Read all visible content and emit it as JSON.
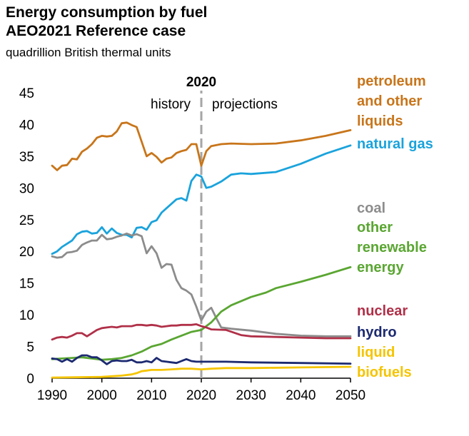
{
  "chart_data": {
    "type": "line",
    "title": "Energy consumption by fuel",
    "subtitle": "AEO2021 Reference case",
    "ylabel": "quadrillion British thermal units",
    "xlabel": "",
    "xlim": [
      1990,
      2050
    ],
    "ylim": [
      0,
      45
    ],
    "x_ticks": [
      1990,
      2000,
      2010,
      2020,
      2030,
      2040,
      2050
    ],
    "y_ticks": [
      0,
      5,
      10,
      15,
      20,
      25,
      30,
      35,
      40,
      45
    ],
    "divider": {
      "year": 2020,
      "label": "2020",
      "left_label": "history",
      "right_label": "projections"
    },
    "series": [
      {
        "name": "petroleum and other liquids",
        "label_lines": [
          "petroleum",
          "and other",
          "liquids"
        ],
        "color": "#c8751a",
        "points": [
          [
            1990,
            33.5
          ],
          [
            1991,
            32.8
          ],
          [
            1992,
            33.5
          ],
          [
            1993,
            33.6
          ],
          [
            1994,
            34.6
          ],
          [
            1995,
            34.5
          ],
          [
            1996,
            35.7
          ],
          [
            1997,
            36.2
          ],
          [
            1998,
            36.9
          ],
          [
            1999,
            37.9
          ],
          [
            2000,
            38.2
          ],
          [
            2001,
            38.1
          ],
          [
            2002,
            38.2
          ],
          [
            2003,
            38.9
          ],
          [
            2004,
            40.2
          ],
          [
            2005,
            40.3
          ],
          [
            2006,
            39.9
          ],
          [
            2007,
            39.6
          ],
          [
            2008,
            37.3
          ],
          [
            2009,
            35.0
          ],
          [
            2010,
            35.5
          ],
          [
            2011,
            34.9
          ],
          [
            2012,
            34.0
          ],
          [
            2013,
            34.6
          ],
          [
            2014,
            34.8
          ],
          [
            2015,
            35.5
          ],
          [
            2016,
            35.8
          ],
          [
            2017,
            36.0
          ],
          [
            2018,
            36.9
          ],
          [
            2019,
            36.9
          ],
          [
            2020,
            33.5
          ],
          [
            2021,
            35.8
          ],
          [
            2022,
            36.6
          ],
          [
            2024,
            36.9
          ],
          [
            2026,
            37.0
          ],
          [
            2030,
            36.9
          ],
          [
            2035,
            37.0
          ],
          [
            2040,
            37.5
          ],
          [
            2045,
            38.2
          ],
          [
            2050,
            39.1
          ]
        ]
      },
      {
        "name": "natural gas",
        "label_lines": [
          "natural gas"
        ],
        "color": "#1aa3dc",
        "points": [
          [
            1990,
            19.6
          ],
          [
            1991,
            20.0
          ],
          [
            1992,
            20.7
          ],
          [
            1993,
            21.2
          ],
          [
            1994,
            21.7
          ],
          [
            1995,
            22.7
          ],
          [
            1996,
            23.1
          ],
          [
            1997,
            23.2
          ],
          [
            1998,
            22.8
          ],
          [
            1999,
            22.9
          ],
          [
            2000,
            23.8
          ],
          [
            2001,
            22.8
          ],
          [
            2002,
            23.6
          ],
          [
            2003,
            22.9
          ],
          [
            2004,
            22.6
          ],
          [
            2005,
            22.6
          ],
          [
            2006,
            22.2
          ],
          [
            2007,
            23.7
          ],
          [
            2008,
            23.8
          ],
          [
            2009,
            23.4
          ],
          [
            2010,
            24.6
          ],
          [
            2011,
            24.9
          ],
          [
            2012,
            26.1
          ],
          [
            2013,
            26.8
          ],
          [
            2014,
            27.5
          ],
          [
            2015,
            28.2
          ],
          [
            2016,
            28.4
          ],
          [
            2017,
            28.0
          ],
          [
            2018,
            31.1
          ],
          [
            2019,
            32.1
          ],
          [
            2020,
            31.8
          ],
          [
            2021,
            30.0
          ],
          [
            2022,
            30.2
          ],
          [
            2024,
            31.0
          ],
          [
            2026,
            32.1
          ],
          [
            2028,
            32.3
          ],
          [
            2030,
            32.2
          ],
          [
            2035,
            32.5
          ],
          [
            2040,
            33.8
          ],
          [
            2045,
            35.4
          ],
          [
            2050,
            36.7
          ]
        ]
      },
      {
        "name": "coal",
        "label_lines": [
          "coal"
        ],
        "color": "#8c8c8c",
        "points": [
          [
            1990,
            19.2
          ],
          [
            1991,
            19.0
          ],
          [
            1992,
            19.1
          ],
          [
            1993,
            19.8
          ],
          [
            1994,
            19.9
          ],
          [
            1995,
            20.1
          ],
          [
            1996,
            21.0
          ],
          [
            1997,
            21.4
          ],
          [
            1998,
            21.7
          ],
          [
            1999,
            21.7
          ],
          [
            2000,
            22.6
          ],
          [
            2001,
            21.9
          ],
          [
            2002,
            22.0
          ],
          [
            2003,
            22.3
          ],
          [
            2004,
            22.5
          ],
          [
            2005,
            22.8
          ],
          [
            2006,
            22.5
          ],
          [
            2007,
            22.7
          ],
          [
            2008,
            22.4
          ],
          [
            2009,
            19.7
          ],
          [
            2010,
            20.8
          ],
          [
            2011,
            19.7
          ],
          [
            2012,
            17.4
          ],
          [
            2013,
            18.0
          ],
          [
            2014,
            17.9
          ],
          [
            2015,
            15.5
          ],
          [
            2016,
            14.2
          ],
          [
            2017,
            13.8
          ],
          [
            2018,
            13.2
          ],
          [
            2019,
            11.3
          ],
          [
            2020,
            9.1
          ],
          [
            2021,
            10.5
          ],
          [
            2022,
            11.1
          ],
          [
            2023,
            9.5
          ],
          [
            2024,
            8.0
          ],
          [
            2026,
            7.8
          ],
          [
            2030,
            7.5
          ],
          [
            2035,
            7.0
          ],
          [
            2040,
            6.7
          ],
          [
            2045,
            6.6
          ],
          [
            2050,
            6.6
          ]
        ]
      },
      {
        "name": "other renewable energy",
        "label_lines": [
          "other",
          "renewable",
          "energy"
        ],
        "color": "#5aa632",
        "points": [
          [
            1990,
            3.0
          ],
          [
            1992,
            3.1
          ],
          [
            1994,
            3.2
          ],
          [
            1996,
            3.3
          ],
          [
            1998,
            3.1
          ],
          [
            2000,
            2.9
          ],
          [
            2002,
            3.0
          ],
          [
            2004,
            3.2
          ],
          [
            2006,
            3.6
          ],
          [
            2008,
            4.2
          ],
          [
            2010,
            5.0
          ],
          [
            2012,
            5.4
          ],
          [
            2014,
            6.1
          ],
          [
            2016,
            6.7
          ],
          [
            2018,
            7.3
          ],
          [
            2020,
            7.6
          ],
          [
            2022,
            8.8
          ],
          [
            2024,
            10.5
          ],
          [
            2026,
            11.5
          ],
          [
            2030,
            12.8
          ],
          [
            2033,
            13.5
          ],
          [
            2035,
            14.2
          ],
          [
            2040,
            15.2
          ],
          [
            2045,
            16.3
          ],
          [
            2050,
            17.5
          ]
        ]
      },
      {
        "name": "nuclear",
        "label_lines": [
          "nuclear"
        ],
        "color": "#b03048",
        "points": [
          [
            1990,
            6.1
          ],
          [
            1991,
            6.4
          ],
          [
            1992,
            6.5
          ],
          [
            1993,
            6.4
          ],
          [
            1994,
            6.7
          ],
          [
            1995,
            7.1
          ],
          [
            1996,
            7.1
          ],
          [
            1997,
            6.6
          ],
          [
            1998,
            7.1
          ],
          [
            1999,
            7.6
          ],
          [
            2000,
            7.9
          ],
          [
            2001,
            8.0
          ],
          [
            2002,
            8.1
          ],
          [
            2003,
            8.0
          ],
          [
            2004,
            8.2
          ],
          [
            2005,
            8.2
          ],
          [
            2006,
            8.2
          ],
          [
            2007,
            8.4
          ],
          [
            2008,
            8.4
          ],
          [
            2009,
            8.3
          ],
          [
            2010,
            8.4
          ],
          [
            2011,
            8.3
          ],
          [
            2012,
            8.1
          ],
          [
            2013,
            8.2
          ],
          [
            2014,
            8.3
          ],
          [
            2015,
            8.3
          ],
          [
            2016,
            8.4
          ],
          [
            2017,
            8.4
          ],
          [
            2018,
            8.4
          ],
          [
            2019,
            8.5
          ],
          [
            2020,
            8.2
          ],
          [
            2021,
            8.0
          ],
          [
            2022,
            7.7
          ],
          [
            2025,
            7.6
          ],
          [
            2028,
            6.8
          ],
          [
            2030,
            6.6
          ],
          [
            2035,
            6.5
          ],
          [
            2040,
            6.4
          ],
          [
            2045,
            6.3
          ],
          [
            2050,
            6.3
          ]
        ]
      },
      {
        "name": "hydro",
        "label_lines": [
          "hydro"
        ],
        "color": "#1c2a70",
        "points": [
          [
            1990,
            3.1
          ],
          [
            1991,
            3.0
          ],
          [
            1992,
            2.6
          ],
          [
            1993,
            3.0
          ],
          [
            1994,
            2.6
          ],
          [
            1995,
            3.2
          ],
          [
            1996,
            3.6
          ],
          [
            1997,
            3.6
          ],
          [
            1998,
            3.3
          ],
          [
            1999,
            3.3
          ],
          [
            2000,
            2.8
          ],
          [
            2001,
            2.2
          ],
          [
            2002,
            2.7
          ],
          [
            2003,
            2.8
          ],
          [
            2004,
            2.7
          ],
          [
            2005,
            2.7
          ],
          [
            2006,
            2.9
          ],
          [
            2007,
            2.5
          ],
          [
            2008,
            2.5
          ],
          [
            2009,
            2.7
          ],
          [
            2010,
            2.5
          ],
          [
            2011,
            3.2
          ],
          [
            2012,
            2.7
          ],
          [
            2013,
            2.6
          ],
          [
            2014,
            2.5
          ],
          [
            2015,
            2.4
          ],
          [
            2016,
            2.7
          ],
          [
            2017,
            3.0
          ],
          [
            2018,
            2.7
          ],
          [
            2019,
            2.6
          ],
          [
            2020,
            2.6
          ],
          [
            2025,
            2.6
          ],
          [
            2030,
            2.5
          ],
          [
            2040,
            2.4
          ],
          [
            2050,
            2.3
          ]
        ]
      },
      {
        "name": "liquid biofuels",
        "label_lines": [
          "liquid",
          "biofuels"
        ],
        "color": "#f5c400",
        "points": [
          [
            1990,
            0.1
          ],
          [
            1995,
            0.15
          ],
          [
            2000,
            0.2
          ],
          [
            2002,
            0.3
          ],
          [
            2004,
            0.4
          ],
          [
            2006,
            0.6
          ],
          [
            2007,
            0.8
          ],
          [
            2008,
            1.1
          ],
          [
            2009,
            1.2
          ],
          [
            2010,
            1.3
          ],
          [
            2012,
            1.3
          ],
          [
            2014,
            1.4
          ],
          [
            2016,
            1.5
          ],
          [
            2018,
            1.5
          ],
          [
            2020,
            1.4
          ],
          [
            2022,
            1.5
          ],
          [
            2025,
            1.6
          ],
          [
            2030,
            1.6
          ],
          [
            2040,
            1.7
          ],
          [
            2050,
            1.8
          ]
        ]
      }
    ]
  }
}
